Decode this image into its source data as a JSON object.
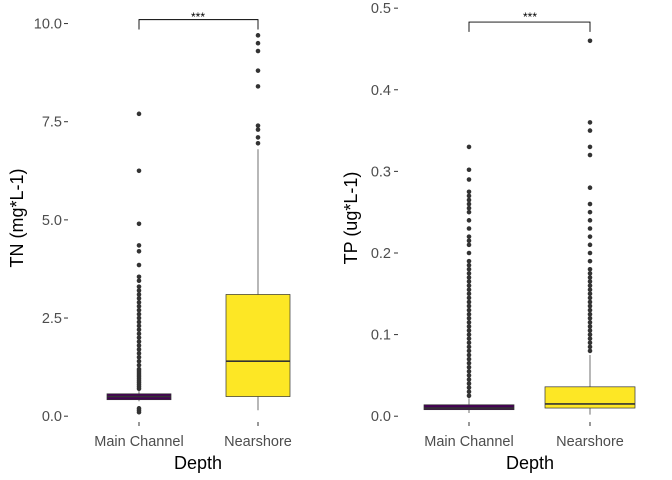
{
  "chart_data": [
    {
      "type": "boxplot",
      "xlabel": "Depth",
      "ylabel": "TN (mg*L-1)",
      "ylim": [
        -0.25,
        10.6
      ],
      "yticks": [
        0,
        2.5,
        5,
        7.5,
        10
      ],
      "ytick_labels": [
        "0.0",
        "2.5",
        "5.0",
        "7.5",
        "10.0"
      ],
      "categories": [
        "Main Channel",
        "Nearshore"
      ],
      "significance": {
        "label": "***",
        "from": "Main Channel",
        "to": "Nearshore",
        "y": 10.1,
        "drop": 0.25
      },
      "boxes": [
        {
          "category": "Main Channel",
          "fill": "#440154",
          "whisker_low": 0.38,
          "q1": 0.42,
          "median": 0.5,
          "q3": 0.57,
          "whisker_high": 0.64,
          "outliers": [
            0.1,
            0.15,
            0.2,
            0.7,
            0.75,
            0.8,
            0.85,
            0.9,
            0.95,
            1.0,
            1.05,
            1.1,
            1.15,
            1.2,
            1.3,
            1.4,
            1.5,
            1.6,
            1.7,
            1.8,
            1.9,
            2.0,
            2.1,
            2.2,
            2.3,
            2.4,
            2.5,
            2.6,
            2.7,
            2.8,
            2.9,
            3.0,
            3.1,
            3.2,
            3.3,
            3.45,
            3.55,
            3.85,
            4.2,
            4.35,
            4.9,
            6.25,
            7.7
          ]
        },
        {
          "category": "Nearshore",
          "fill": "#FDE725",
          "whisker_low": 0.15,
          "q1": 0.5,
          "median": 1.4,
          "q3": 3.1,
          "whisker_high": 6.8,
          "outliers": [
            6.95,
            7.1,
            7.3,
            7.4,
            8.4,
            8.8,
            9.3,
            9.5,
            9.7
          ]
        }
      ]
    },
    {
      "type": "boxplot",
      "xlabel": "Depth",
      "ylabel": "TP (ug*L-1)",
      "ylim": [
        -0.012,
        0.51
      ],
      "yticks": [
        0,
        0.1,
        0.2,
        0.3,
        0.4,
        0.5
      ],
      "ytick_labels": [
        "0.0",
        "0.1",
        "0.2",
        "0.3",
        "0.4",
        "0.5"
      ],
      "categories": [
        "Main Channel",
        "Nearshore"
      ],
      "significance": {
        "label": "***",
        "from": "Main Channel",
        "to": "Nearshore",
        "y": 0.483,
        "drop": 0.012
      },
      "boxes": [
        {
          "category": "Main Channel",
          "fill": "#440154",
          "whisker_low": 0.004,
          "q1": 0.008,
          "median": 0.01,
          "q3": 0.014,
          "whisker_high": 0.022,
          "outliers": [
            0.025,
            0.03,
            0.035,
            0.04,
            0.045,
            0.05,
            0.055,
            0.06,
            0.065,
            0.07,
            0.075,
            0.08,
            0.085,
            0.09,
            0.095,
            0.1,
            0.105,
            0.11,
            0.115,
            0.12,
            0.125,
            0.13,
            0.135,
            0.14,
            0.145,
            0.15,
            0.155,
            0.16,
            0.165,
            0.17,
            0.175,
            0.18,
            0.185,
            0.19,
            0.2,
            0.21,
            0.215,
            0.22,
            0.23,
            0.24,
            0.25,
            0.255,
            0.26,
            0.265,
            0.27,
            0.275,
            0.29,
            0.302,
            0.33
          ]
        },
        {
          "category": "Nearshore",
          "fill": "#FDE725",
          "whisker_low": 0.002,
          "q1": 0.01,
          "median": 0.015,
          "q3": 0.036,
          "whisker_high": 0.075,
          "outliers": [
            0.08,
            0.085,
            0.09,
            0.095,
            0.1,
            0.105,
            0.11,
            0.115,
            0.12,
            0.125,
            0.13,
            0.135,
            0.14,
            0.145,
            0.15,
            0.155,
            0.16,
            0.165,
            0.17,
            0.175,
            0.18,
            0.19,
            0.2,
            0.21,
            0.22,
            0.23,
            0.24,
            0.25,
            0.26,
            0.28,
            0.32,
            0.33,
            0.35,
            0.36,
            0.46
          ]
        }
      ]
    }
  ]
}
